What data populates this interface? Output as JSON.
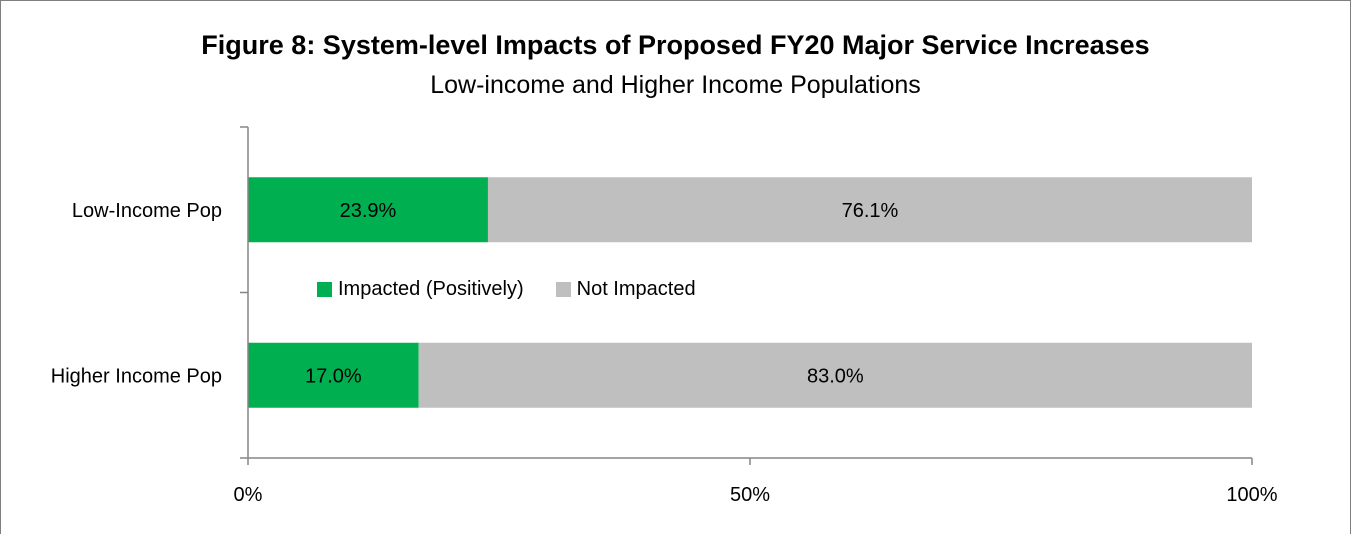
{
  "chart_data": {
    "type": "bar",
    "orientation": "horizontal",
    "stacked": "percent",
    "title": "Figure 8: System-level Impacts of Proposed FY20 Major Service Increases",
    "subtitle": "Low-income and Higher Income Populations",
    "categories": [
      "Low-Income Pop",
      "Higher Income Pop"
    ],
    "series": [
      {
        "name": "Impacted (Positively)",
        "color": "#00b050",
        "values": [
          23.9,
          17.0
        ],
        "labels": [
          "23.9%",
          "17.0%"
        ]
      },
      {
        "name": "Not Impacted",
        "color": "#bfbfbf",
        "values": [
          76.1,
          83.0
        ],
        "labels": [
          "76.1%",
          "83.0%"
        ]
      }
    ],
    "xlim": [
      0,
      100
    ],
    "xticks": [
      {
        "value": 0,
        "label": "0%"
      },
      {
        "value": 50,
        "label": "50%"
      },
      {
        "value": 100,
        "label": "100%"
      }
    ],
    "grid": false,
    "legend": "center"
  }
}
